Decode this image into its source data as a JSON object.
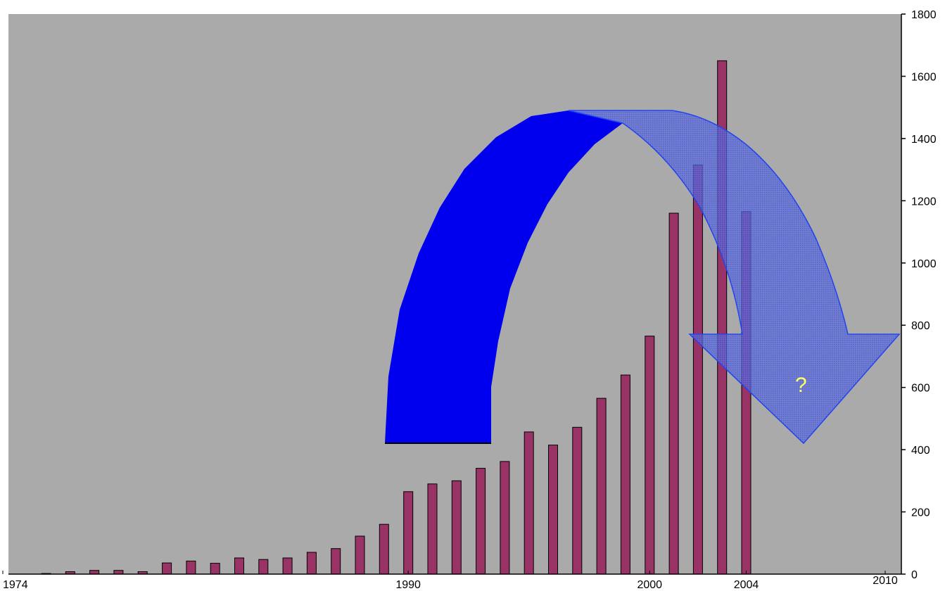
{
  "chart_data": {
    "type": "bar",
    "title": "",
    "xlabel": "",
    "ylabel": "",
    "x": [
      1975,
      1976,
      1977,
      1978,
      1979,
      1980,
      1981,
      1982,
      1983,
      1984,
      1985,
      1986,
      1987,
      1988,
      1989,
      1990,
      1991,
      1992,
      1993,
      1994,
      1995,
      1996,
      1997,
      1998,
      1999,
      2000,
      2001,
      2002,
      2003,
      2004
    ],
    "values": [
      2,
      8,
      12,
      12,
      8,
      36,
      42,
      35,
      52,
      47,
      52,
      70,
      82,
      122,
      160,
      265,
      290,
      300,
      340,
      362,
      457,
      415,
      472,
      565,
      640,
      765,
      1160,
      1315,
      1650,
      1165
    ],
    "xlim": [
      1974,
      2010
    ],
    "ylim": [
      0,
      1800
    ],
    "x_tick_labels": [
      "1974",
      "1990",
      "2000",
      "2004",
      "2010"
    ],
    "y_ticks": [
      0,
      200,
      400,
      600,
      800,
      1000,
      1200,
      1400,
      1600,
      1800
    ],
    "y_axis_position": "right",
    "grid": false,
    "bar_color": "#993366",
    "plot_background": "#aaaaaa",
    "annotations": [
      {
        "text": "?",
        "color": "#ffff66"
      }
    ],
    "arrows": [
      {
        "name": "rise-arrow",
        "style": "solid",
        "color": "#0000ee"
      },
      {
        "name": "decline-arrow",
        "style": "translucent",
        "color": "#3355ee"
      }
    ]
  }
}
